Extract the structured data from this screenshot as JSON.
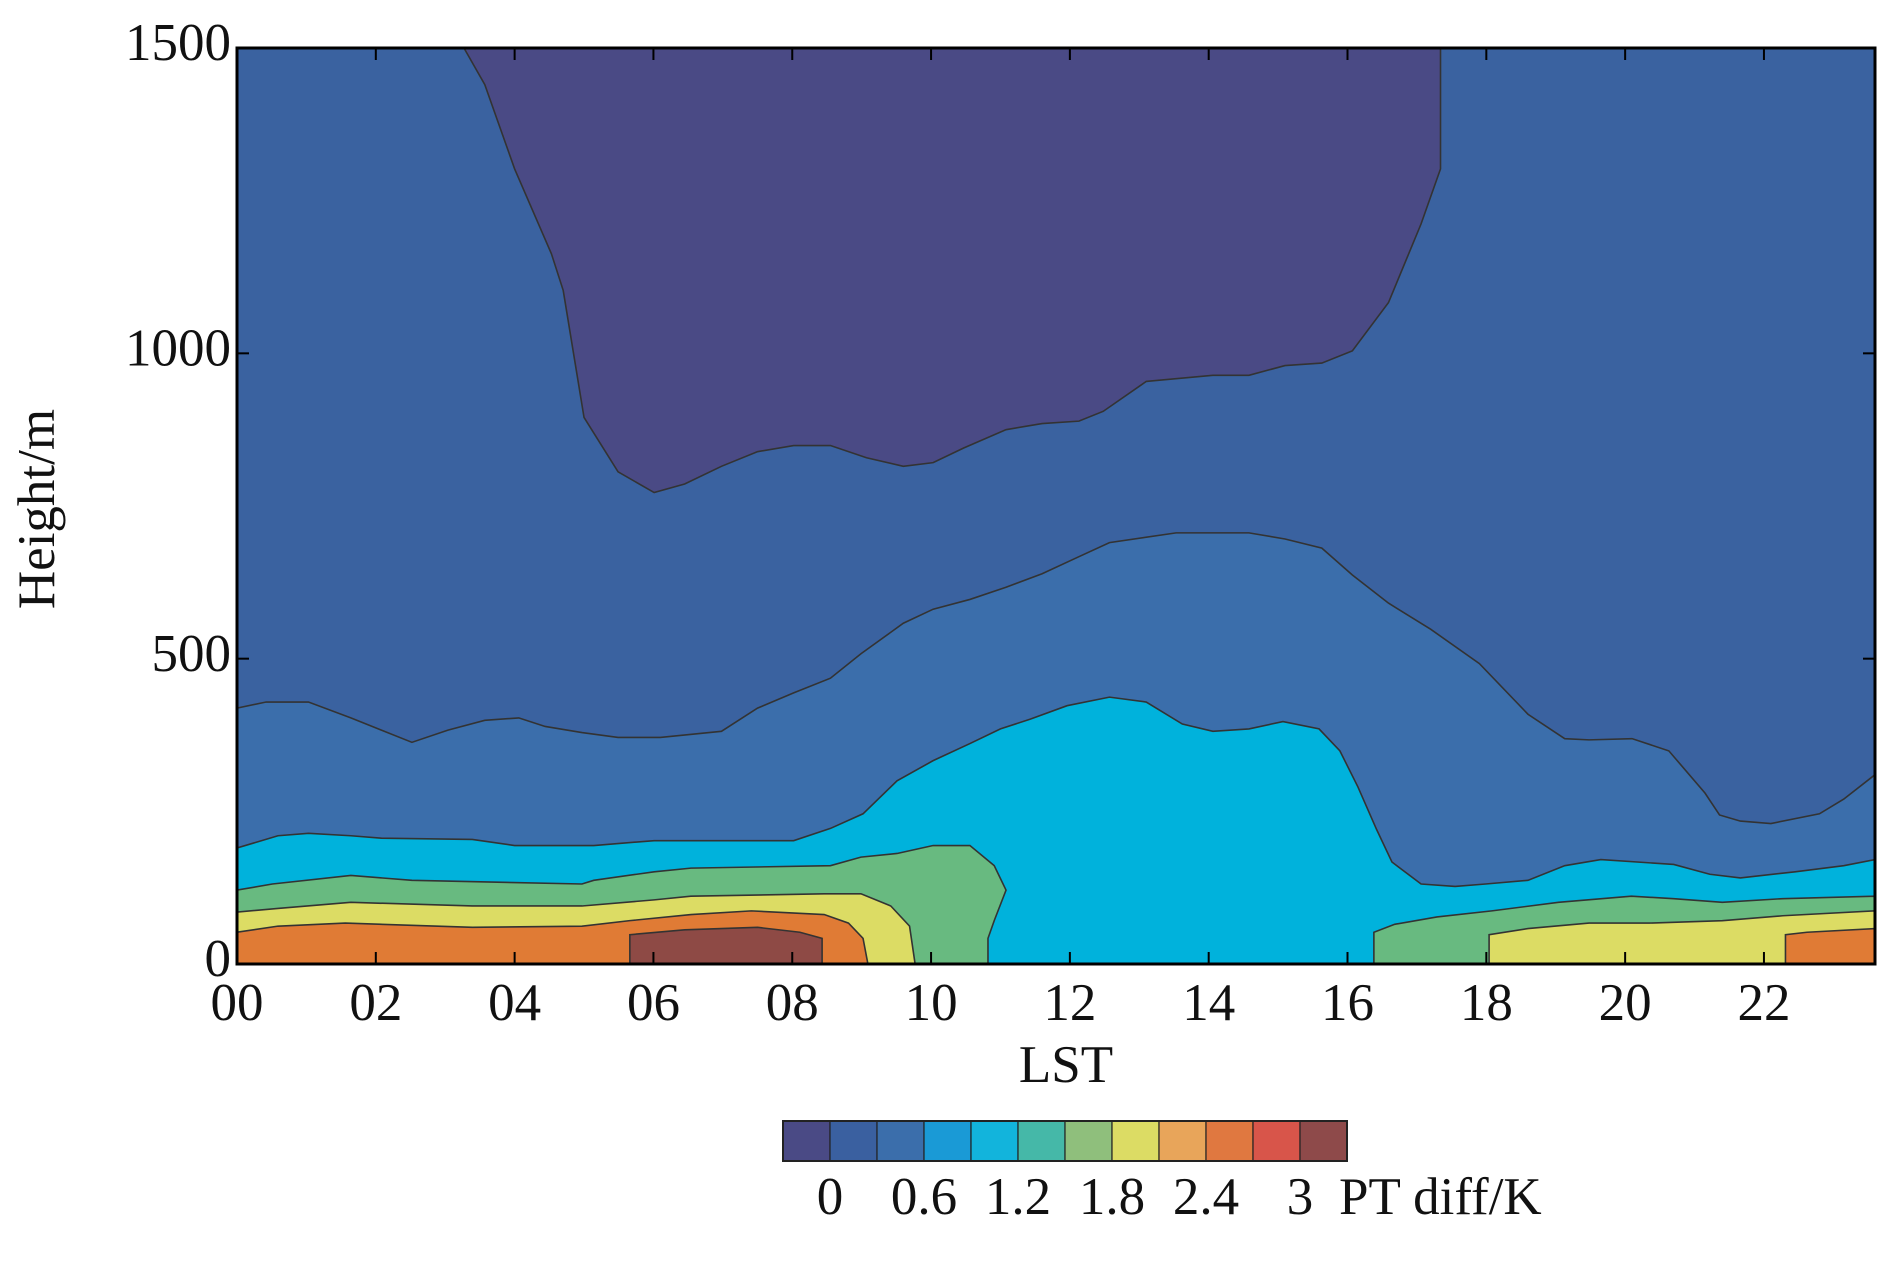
{
  "chart_data": {
    "type": "contour",
    "xlabel": "LST",
    "ylabel": "Height/m",
    "xlim": [
      0,
      23.6
    ],
    "ylim": [
      0,
      1500
    ],
    "xticks": [
      {
        "value": 0,
        "label": "00"
      },
      {
        "value": 2,
        "label": "02"
      },
      {
        "value": 4,
        "label": "04"
      },
      {
        "value": 6,
        "label": "06"
      },
      {
        "value": 8,
        "label": "08"
      },
      {
        "value": 10,
        "label": "10"
      },
      {
        "value": 12,
        "label": "12"
      },
      {
        "value": 14,
        "label": "14"
      },
      {
        "value": 16,
        "label": "16"
      },
      {
        "value": 18,
        "label": "18"
      },
      {
        "value": 20,
        "label": "20"
      },
      {
        "value": 22,
        "label": "22"
      }
    ],
    "yticks": [
      0,
      500,
      1000,
      1500
    ],
    "colorbar": {
      "label": "PT diff/K",
      "levels": [
        0,
        0.3,
        0.6,
        0.9,
        1.2,
        1.5,
        1.8,
        2.1,
        2.4,
        2.7,
        3
      ],
      "colors": [
        "#4a4a85",
        "#3a60a0",
        "#3b6eab",
        "#1a9ad6",
        "#12b4dc",
        "#45b8a8",
        "#8fbf7c",
        "#dcdc64",
        "#e8a55a",
        "#e07840",
        "#d8554a",
        "#8e4a4a"
      ],
      "ticks": [
        0,
        0.6,
        1.2,
        1.8,
        2.4,
        3
      ]
    },
    "regions": [
      {
        "color": "#3a62a0",
        "x": [
          0,
          0,
          23.6,
          23.6
        ],
        "y": [
          0,
          1500,
          1500,
          0
        ]
      },
      {
        "color": "#4a4a85",
        "x": [
          3.27,
          3.57,
          4.0,
          4.53,
          4.7,
          5.0,
          5.49,
          6.01,
          6.45,
          6.98,
          7.5,
          8.02,
          8.55,
          9.07,
          9.6,
          10.03,
          10.47,
          11.08,
          11.6,
          12.13,
          12.48,
          13.1,
          14.06,
          14.58,
          15.1,
          15.63,
          16.07,
          16.59,
          17.06,
          17.34,
          17.34
        ],
        "y": [
          1500,
          1440,
          1302,
          1163,
          1103,
          895,
          806,
          772,
          786,
          815,
          839,
          849,
          849,
          829,
          815,
          821,
          845,
          875,
          885,
          889,
          905,
          954,
          964,
          964,
          980,
          984,
          1004,
          1083,
          1212,
          1302,
          1500
        ]
      },
      {
        "color": "#3b6eab",
        "x": [
          0,
          0,
          0.42,
          1.03,
          1.64,
          2.08,
          2.52,
          3.04,
          3.57,
          4.06,
          4.44,
          4.97,
          5.49,
          6.1,
          6.98,
          7.5,
          8.02,
          8.55,
          8.99,
          9.6,
          10.03,
          10.56,
          11.08,
          11.6,
          12.13,
          12.57,
          13.53,
          14.58,
          15.1,
          15.63,
          16.07,
          16.59,
          17.2,
          17.9,
          18.6,
          19.13,
          19.48,
          20.1,
          20.63,
          21.15,
          21.36,
          21.66,
          22.1,
          22.8,
          23.15,
          23.6,
          23.6
        ],
        "y": [
          0,
          419,
          429,
          429,
          403,
          383,
          363,
          383,
          399,
          403,
          389,
          379,
          371,
          371,
          381,
          419,
          444,
          468,
          508,
          558,
          581,
          597,
          617,
          639,
          667,
          690,
          706,
          706,
          696,
          681,
          637,
          591,
          548,
          492,
          409,
          369,
          367,
          369,
          349,
          280,
          244,
          234,
          230,
          246,
          270,
          310,
          0
        ]
      },
      {
        "color": "#00b2dc",
        "x": [
          0,
          0,
          0.59,
          1.03,
          1.64,
          2.08,
          3.39,
          4.0,
          5.14,
          6.01,
          8.02,
          8.55,
          9.02,
          9.51,
          10.03,
          10.56,
          11.0,
          11.43,
          11.96,
          12.57,
          13.1,
          13.62,
          14.06,
          14.58,
          15.07,
          15.59,
          15.89,
          16.15,
          16.42,
          16.64,
          17.06,
          17.55,
          17.99,
          18.6,
          19.13,
          19.65,
          20.7,
          21.22,
          21.66,
          22.45,
          23.15,
          23.6,
          23.6
        ],
        "y": [
          0,
          190,
          210,
          214,
          210,
          206,
          204,
          194,
          194,
          202,
          202,
          222,
          246,
          300,
          333,
          361,
          385,
          401,
          423,
          437,
          429,
          393,
          381,
          385,
          397,
          385,
          349,
          290,
          220,
          167,
          131,
          127,
          131,
          137,
          161,
          171,
          163,
          147,
          141,
          151,
          161,
          171,
          0
        ]
      },
      {
        "color": "#68ba80",
        "x": [
          0,
          0,
          0.51,
          1.64,
          2.52,
          4.97,
          5.14,
          6.01,
          6.54,
          8.55,
          8.99,
          9.51,
          10.03,
          10.56,
          10.91,
          11.08,
          10.91,
          10.82,
          10.82
        ],
        "y": [
          0,
          121,
          131,
          145,
          137,
          131,
          137,
          151,
          157,
          161,
          175,
          181,
          194,
          194,
          161,
          121,
          71,
          42,
          0
        ]
      },
      {
        "color": "#68ba80",
        "x": [
          16.38,
          16.38,
          16.68,
          17.29,
          18.08,
          19.04,
          20.09,
          20.7,
          21.4,
          22.27,
          23.6,
          23.6
        ],
        "y": [
          0,
          52,
          65,
          77,
          87,
          101,
          111,
          107,
          101,
          107,
          111,
          0
        ]
      },
      {
        "color": "#dcdc64",
        "x": [
          0,
          0,
          0.59,
          1.64,
          3.39,
          4.97,
          6.01,
          6.54,
          8.46,
          8.99,
          9.42,
          9.69,
          9.77
        ],
        "y": [
          0,
          85,
          91,
          101,
          95,
          95,
          105,
          111,
          115,
          115,
          95,
          62,
          0
        ]
      },
      {
        "color": "#dcdc64",
        "x": [
          18.04,
          18.04,
          18.6,
          19.48,
          20.35,
          21.4,
          22.27,
          23.6,
          23.6
        ],
        "y": [
          0,
          48,
          58,
          67,
          67,
          71,
          79,
          87,
          0
        ]
      },
      {
        "color": "#e07b35",
        "x": [
          0,
          0,
          0.59,
          1.56,
          3.39,
          4.97,
          5.66,
          6.54,
          7.41,
          8.46,
          8.81,
          9.02,
          9.09
        ],
        "y": [
          0,
          52,
          62,
          67,
          60,
          62,
          71,
          81,
          87,
          81,
          67,
          42,
          0
        ]
      },
      {
        "color": "#e07b35",
        "x": [
          22.31,
          22.31,
          22.62,
          23.6,
          23.6
        ],
        "y": [
          0,
          48,
          52,
          58,
          0
        ]
      },
      {
        "color": "#8e4a45",
        "x": [
          5.66,
          5.66,
          6.45,
          7.5,
          8.11,
          8.43,
          8.43
        ],
        "y": [
          0,
          48,
          56,
          60,
          52,
          42,
          0
        ]
      }
    ]
  }
}
